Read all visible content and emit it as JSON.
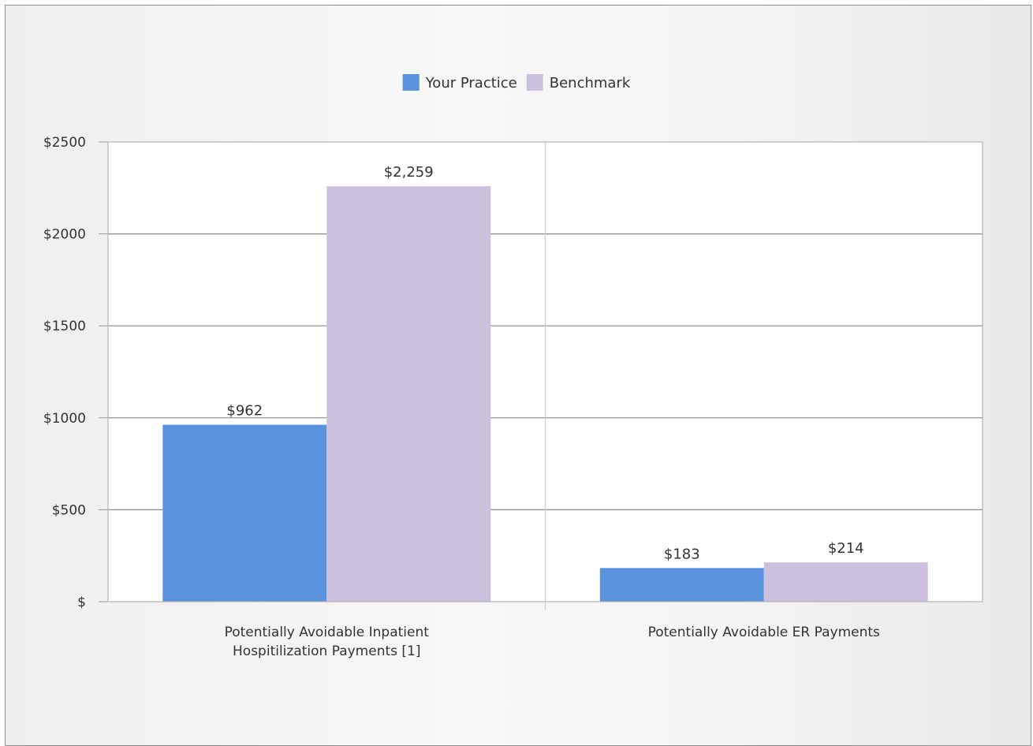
{
  "chart_data": {
    "type": "bar",
    "categories": [
      [
        "Potentially Avoidable Inpatient",
        "Hospitilization Payments [1]"
      ],
      [
        "Potentially Avoidable ER Payments"
      ]
    ],
    "series": [
      {
        "name": "Your Practice",
        "color": "#5a92dd",
        "values": [
          962,
          183
        ],
        "labels": [
          "$962",
          "$183"
        ]
      },
      {
        "name": "Benchmark",
        "color": "#cbc1de",
        "values": [
          2259,
          214
        ],
        "labels": [
          "$2,259",
          "$214"
        ]
      }
    ],
    "yticks": [
      "$",
      "$500",
      "$1000",
      "$1500",
      "$2000",
      "$2500"
    ],
    "ylim": [
      0,
      2500
    ],
    "ystep": 500,
    "legend_position": "top-center",
    "grid": true
  }
}
